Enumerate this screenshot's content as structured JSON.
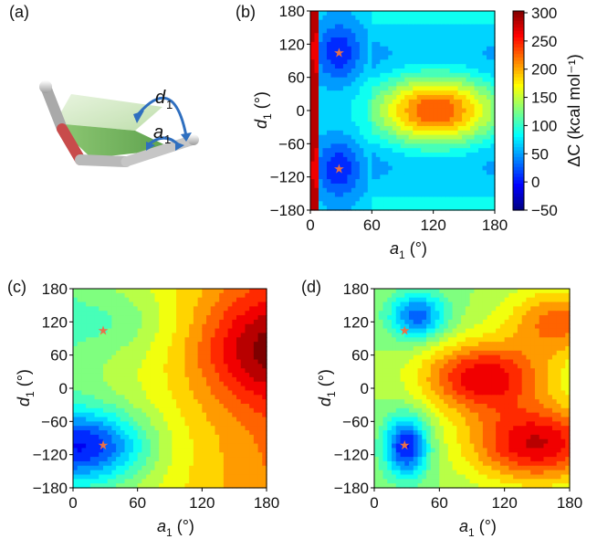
{
  "panels": {
    "a": {
      "label": "(a)",
      "annot_d": "d",
      "annot_d_sub": "1",
      "annot_a": "a",
      "annot_a_sub": "1"
    },
    "b": {
      "label": "(b)"
    },
    "c": {
      "label": "(c)"
    },
    "d": {
      "label": "(d)"
    }
  },
  "axes": {
    "x_base": "a",
    "x_sub": "1",
    "x_unit": " (°)",
    "y_base": "d",
    "y_sub": "1",
    "y_unit": " (°)",
    "x_ticks": [
      "0",
      "60",
      "120",
      "180"
    ],
    "y_ticks": [
      "180",
      "120",
      "60",
      "0",
      "−60",
      "−120",
      "−180"
    ]
  },
  "colorbar": {
    "label": "ΔC (kcal mol⁻¹)",
    "ticks": [
      "300",
      "250",
      "200",
      "150",
      "100",
      "50",
      "0",
      "−50"
    ],
    "colors": [
      "#00007f",
      "#0000ff",
      "#007fff",
      "#00ffff",
      "#7fff7f",
      "#ffff00",
      "#ff7f00",
      "#ff0000",
      "#7f0000"
    ]
  },
  "chart_data": [
    {
      "panel": "b",
      "type": "heatmap",
      "xlabel": "a1 (°)",
      "ylabel": "d1 (°)",
      "xlim": [
        0,
        180
      ],
      "ylim": [
        -180,
        180
      ],
      "zlim": [
        -50,
        300
      ],
      "colorbar_label": "ΔC (kcal mol⁻¹)",
      "minima": [
        {
          "a1": 28,
          "d1": 105
        },
        {
          "a1": 28,
          "d1": -105
        }
      ],
      "maximum": {
        "a1": 122,
        "d1": 0
      },
      "wall": {
        "a1_max": 10
      }
    },
    {
      "panel": "c",
      "type": "heatmap",
      "xlabel": "a1 (°)",
      "ylabel": "d1 (°)",
      "xlim": [
        0,
        180
      ],
      "ylim": [
        -180,
        180
      ],
      "minimum": {
        "a1": 12,
        "d1": -105
      },
      "maximum": {
        "a1": 180,
        "d1": 70
      },
      "stars": [
        {
          "a1": 28,
          "d1": 105
        },
        {
          "a1": 28,
          "d1": -102
        }
      ]
    },
    {
      "panel": "d",
      "type": "heatmap",
      "xlabel": "a1 (°)",
      "ylabel": "d1 (°)",
      "xlim": [
        0,
        180
      ],
      "ylim": [
        -180,
        180
      ],
      "minima": [
        {
          "a1": 30,
          "d1": -105
        },
        {
          "a1": 40,
          "d1": 130
        }
      ],
      "maxima": [
        {
          "a1": 100,
          "d1": 20
        },
        {
          "a1": 150,
          "d1": -100
        }
      ],
      "stars": [
        {
          "a1": 28,
          "d1": 105
        },
        {
          "a1": 28,
          "d1": -102
        }
      ]
    }
  ]
}
